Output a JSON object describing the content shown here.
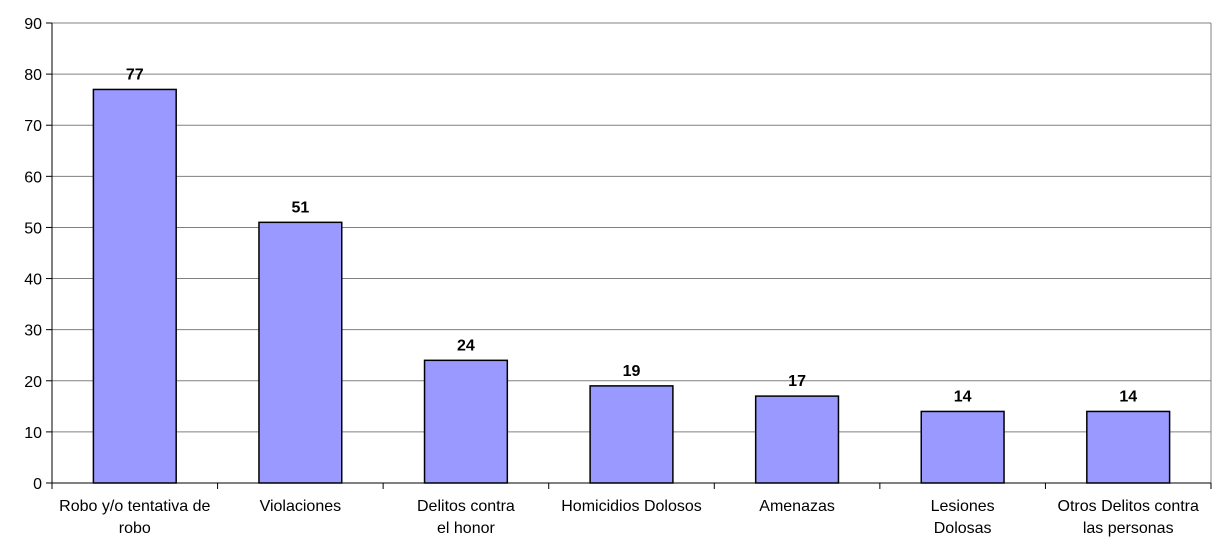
{
  "chart_data": {
    "type": "bar",
    "title": "",
    "xlabel": "",
    "ylabel": "",
    "categories": [
      [
        "Robo y/o tentativa de",
        "robo"
      ],
      [
        "Violaciones"
      ],
      [
        "Delitos contra",
        "el honor"
      ],
      [
        "Homicidios Dolosos"
      ],
      [
        "Amenazas"
      ],
      [
        "Lesiones",
        "Dolosas"
      ],
      [
        "Otros Delitos contra",
        "las personas"
      ]
    ],
    "values": [
      77,
      51,
      24,
      19,
      17,
      14,
      14
    ],
    "data_labels": [
      "77",
      "51",
      "24",
      "19",
      "17",
      "14",
      "14"
    ],
    "ylim": [
      0,
      90
    ],
    "yticks": [
      0,
      10,
      20,
      30,
      40,
      50,
      60,
      70,
      80,
      90
    ],
    "grid": true,
    "legend": "none",
    "colors": {
      "bar_fill": "#9999FF",
      "bar_stroke": "#000000",
      "grid": "#808080",
      "axis": "#000000"
    }
  }
}
